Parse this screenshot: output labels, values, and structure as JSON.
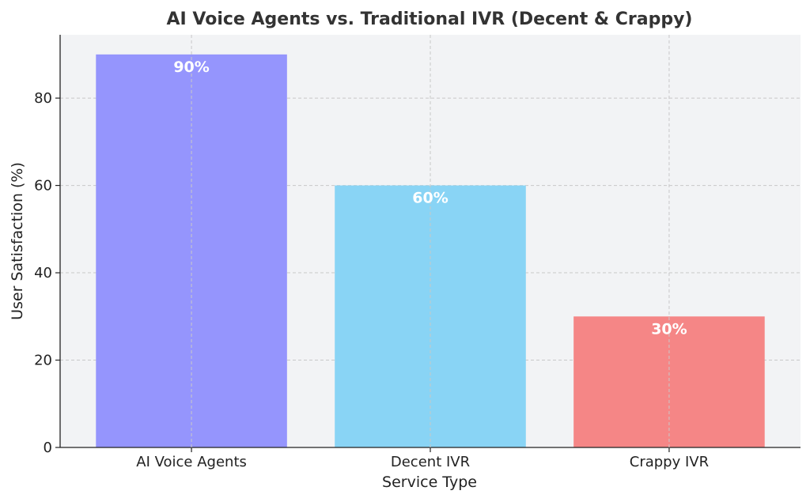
{
  "chart_data": {
    "type": "bar",
    "title": "AI Voice Agents vs. Traditional IVR (Decent & Crappy)",
    "xlabel": "Service Type",
    "ylabel": "User Satisfaction (%)",
    "categories": [
      "AI Voice Agents",
      "Decent IVR",
      "Crappy IVR"
    ],
    "values": [
      90,
      60,
      30
    ],
    "data_labels": [
      "90%",
      "60%",
      "30%"
    ],
    "colors": [
      "#9595fd",
      "#89d4f5",
      "#f58686"
    ],
    "ylim": [
      0,
      94.5
    ],
    "yticks": [
      0,
      20,
      40,
      60,
      80
    ],
    "grid": true,
    "background": "#f2f3f5"
  }
}
